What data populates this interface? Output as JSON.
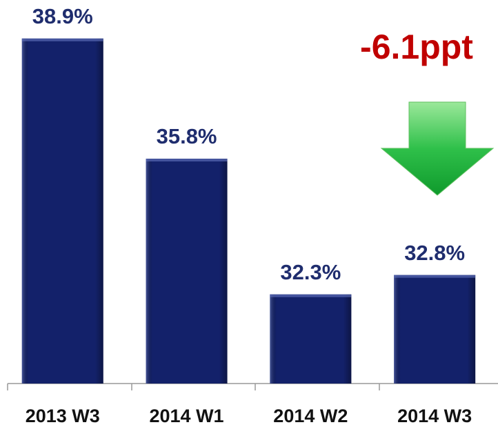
{
  "chart_data": {
    "type": "bar",
    "categories": [
      "2013 W3",
      "2014 W1",
      "2014 W2",
      "2014 W3"
    ],
    "values": [
      38.9,
      35.8,
      32.3,
      32.8
    ],
    "value_labels": [
      "38.9%",
      "35.8%",
      "32.3%",
      "32.8%"
    ],
    "color": "#13216a",
    "ylim": [
      30,
      40
    ],
    "annotation": "-6.1ppt"
  }
}
